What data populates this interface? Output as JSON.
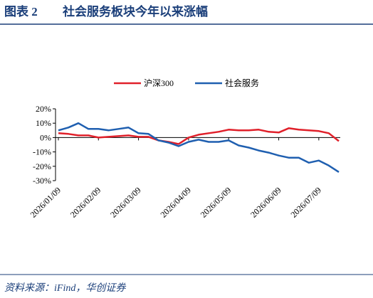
{
  "header": {
    "label": "图表 2",
    "title": "社会服务板块今年以来涨幅"
  },
  "chart_data": {
    "type": "line",
    "categories": [
      "2026/01/09",
      null,
      null,
      null,
      "2026/02/09",
      null,
      null,
      null,
      "2026/03/09",
      null,
      null,
      null,
      null,
      "2026/04/09",
      null,
      null,
      null,
      "2026/05/09",
      null,
      null,
      null,
      null,
      "2026/06/09",
      null,
      null,
      null,
      "2026/07/09",
      null,
      null
    ],
    "series": [
      {
        "name": "沪深300",
        "color": "#e0202a",
        "values": [
          3,
          2.5,
          1.5,
          1.5,
          0,
          0.5,
          1,
          1.5,
          0.5,
          0.5,
          -2,
          -3,
          -4.5,
          0,
          2,
          3,
          4,
          5.5,
          5,
          5,
          5.5,
          4,
          3.5,
          6.5,
          5.5,
          5,
          4.5,
          3,
          -2.5
        ]
      },
      {
        "name": "社会服务",
        "color": "#1f5fb0",
        "values": [
          5,
          7,
          10,
          6,
          6,
          5,
          6,
          7,
          3,
          2.5,
          -2,
          -3.5,
          -6,
          -3,
          -1.5,
          -3,
          -3,
          -2,
          -5.5,
          -7,
          -9,
          -10.5,
          -12.5,
          -14,
          -14,
          -17.5,
          -16,
          -19.5,
          -24
        ]
      }
    ],
    "ylim": [
      -30,
      20
    ],
    "yticks": [
      {
        "value": 20,
        "label": "20%"
      },
      {
        "value": 10,
        "label": "10%"
      },
      {
        "value": 0,
        "label": "0%"
      },
      {
        "value": -10,
        "label": "-10%"
      },
      {
        "value": -20,
        "label": "-20%"
      },
      {
        "value": -30,
        "label": "-30%"
      }
    ],
    "grid": false,
    "legend": "top"
  },
  "source": "资料来源：iFind，华创证券"
}
